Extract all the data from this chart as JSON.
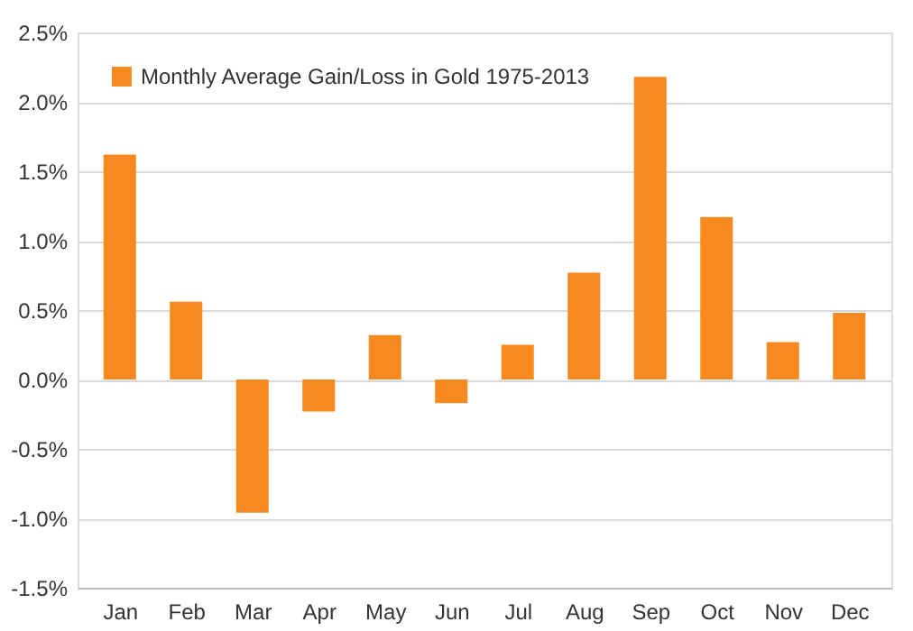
{
  "chart_data": {
    "type": "bar",
    "categories": [
      "Jan",
      "Feb",
      "Mar",
      "Apr",
      "May",
      "Jun",
      "Jul",
      "Aug",
      "Sep",
      "Oct",
      "Nov",
      "Dec"
    ],
    "series": [
      {
        "name": "Monthly Average Gain/Loss in Gold 1975-2013",
        "color": "#f7891f",
        "values": [
          1.62,
          0.56,
          -0.96,
          -0.23,
          0.32,
          -0.17,
          0.25,
          0.77,
          2.18,
          1.17,
          0.27,
          0.48
        ]
      }
    ],
    "ylim": [
      -1.5,
      2.5
    ],
    "yticks": [
      {
        "value": -1.5,
        "label": "-1.5%"
      },
      {
        "value": -1.0,
        "label": "-1.0%"
      },
      {
        "value": -0.5,
        "label": "-0.5%"
      },
      {
        "value": 0,
        "label": "0.0%"
      },
      {
        "value": 0.5,
        "label": "0.5%"
      },
      {
        "value": 1.0,
        "label": "1.0%"
      },
      {
        "value": 1.5,
        "label": "1.5%"
      },
      {
        "value": 2.0,
        "label": "2.0%"
      },
      {
        "value": 2.5,
        "label": "2.5%"
      }
    ],
    "grid": "y",
    "legend": "top left"
  }
}
